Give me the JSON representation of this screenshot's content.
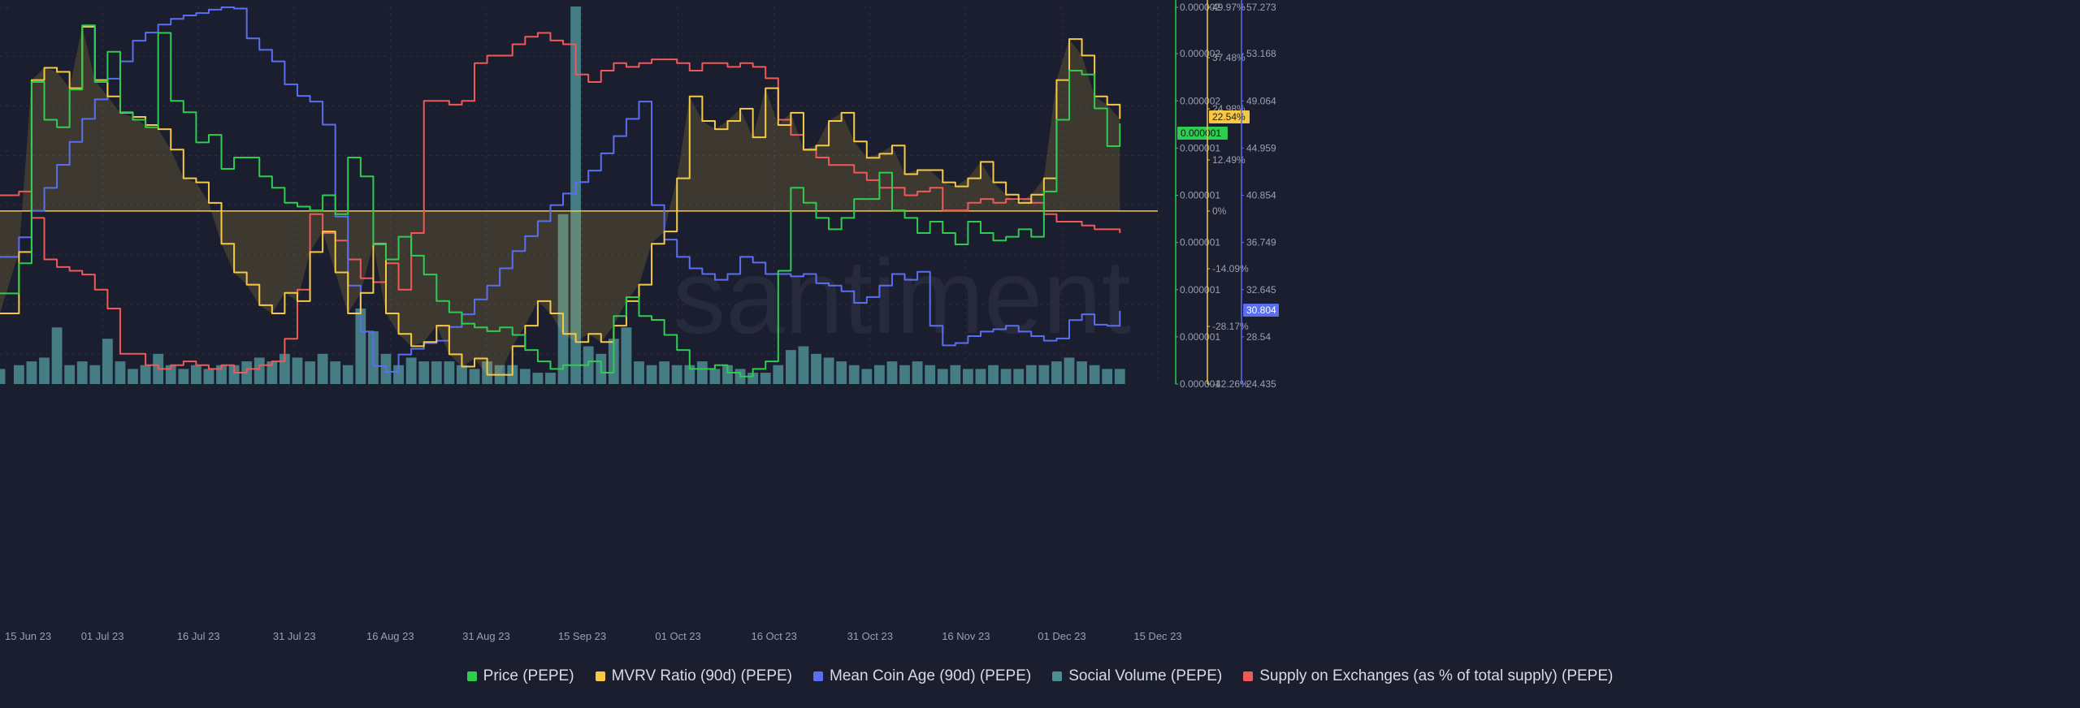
{
  "watermark": "santiment",
  "colors": {
    "background": "#1b1e2e",
    "grid": "#2a2e40",
    "axis_text": "#9aa0b4",
    "price": "#2ecc4f",
    "mvrv": "#f5c945",
    "coin_age": "#5a6ff0",
    "social": "#4e8e93",
    "supply": "#f0585a"
  },
  "legend": [
    {
      "label": "Price (PEPE)",
      "color": "#2ecc4f"
    },
    {
      "label": "MVRV Ratio (90d) (PEPE)",
      "color": "#f5c945"
    },
    {
      "label": "Mean Coin Age (90d) (PEPE)",
      "color": "#5a6ff0"
    },
    {
      "label": "Social Volume (PEPE)",
      "color": "#4e8e93"
    },
    {
      "label": "Supply on Exchanges (as % of total supply) (PEPE)",
      "color": "#f0585a"
    }
  ],
  "chart_data": {
    "type": "line",
    "x_ticks": [
      "15 Jun 23",
      "01 Jul 23",
      "16 Jul 23",
      "31 Jul 23",
      "16 Aug 23",
      "31 Aug 23",
      "15 Sep 23",
      "01 Oct 23",
      "16 Oct 23",
      "31 Oct 23",
      "16 Nov 23",
      "01 Dec 23",
      "15 Dec 23"
    ],
    "xlim": [
      0,
      183
    ],
    "price_axis": {
      "ticks": [
        "0.000002",
        "0.000002",
        "0.000002",
        "0.000001",
        "0.000001",
        "0.000001",
        "0.000001",
        "0.000001",
        "0.000001"
      ],
      "current": "0.000001",
      "color": "#2ecc4f"
    },
    "mvrv_axis": {
      "ticks": [
        "49.97%",
        "37.48%",
        "24.98%",
        "12.49%",
        "0%",
        "-14.09%",
        "-28.17%",
        "-42.26%"
      ],
      "tick_values": [
        49.97,
        37.48,
        24.98,
        12.49,
        0,
        -14.09,
        -28.17,
        -42.26
      ],
      "current": "22.54%",
      "color": "#f5c945",
      "ylim": [
        -42.26,
        49.97
      ]
    },
    "coin_age_axis": {
      "ticks": [
        "57.273",
        "53.168",
        "49.064",
        "44.959",
        "40.854",
        "36.749",
        "32.645",
        "28.54",
        "24.435"
      ],
      "current": "30.804",
      "color": "#5a6ff0",
      "ylim": [
        24.435,
        57.273
      ]
    },
    "series": [
      {
        "name": "Price (PEPE)",
        "axis": "price",
        "x": [
          0,
          3,
          5,
          7,
          9,
          11,
          13,
          15,
          17,
          19,
          21,
          23,
          25,
          27,
          29,
          31,
          33,
          35,
          37,
          39,
          41,
          43,
          45,
          47,
          49,
          51,
          53,
          55,
          57,
          59,
          61,
          63,
          65,
          67,
          69,
          71,
          73,
          75,
          77,
          79,
          81,
          83,
          85,
          87,
          89,
          91,
          93,
          95,
          97,
          99,
          101,
          103,
          105,
          107,
          109,
          111,
          113,
          115,
          117,
          119,
          121,
          123,
          125,
          127,
          129,
          131,
          133,
          135,
          137,
          139,
          141,
          143,
          145,
          147,
          149,
          151,
          153,
          155,
          157,
          159,
          161,
          163,
          165,
          167,
          169,
          171,
          173,
          175,
          177
        ],
        "values": [
          0.24,
          0.32,
          0.8,
          0.7,
          0.68,
          0.78,
          0.95,
          0.8,
          0.88,
          0.72,
          0.7,
          0.68,
          0.93,
          0.75,
          0.72,
          0.64,
          0.66,
          0.57,
          0.6,
          0.6,
          0.55,
          0.52,
          0.48,
          0.47,
          0.46,
          0.5,
          0.45,
          0.6,
          0.55,
          0.37,
          0.33,
          0.39,
          0.34,
          0.29,
          0.22,
          0.19,
          0.16,
          0.15,
          0.14,
          0.15,
          0.13,
          0.09,
          0.06,
          0.04,
          0.05,
          0.05,
          0.06,
          0.03,
          0.18,
          0.23,
          0.18,
          0.17,
          0.13,
          0.09,
          0.04,
          0.04,
          0.05,
          0.03,
          0.02,
          0.04,
          0.06,
          0.3,
          0.52,
          0.48,
          0.44,
          0.41,
          0.44,
          0.49,
          0.49,
          0.56,
          0.46,
          0.44,
          0.4,
          0.43,
          0.4,
          0.37,
          0.43,
          0.4,
          0.38,
          0.39,
          0.41,
          0.39,
          0.51,
          0.7,
          0.83,
          0.82,
          0.73,
          0.63,
          0.69
        ]
      },
      {
        "name": "MVRV Ratio (90d) (PEPE)",
        "axis": "mvrv",
        "x": [
          0,
          3,
          5,
          7,
          9,
          11,
          13,
          15,
          17,
          19,
          21,
          23,
          25,
          27,
          29,
          31,
          33,
          35,
          37,
          39,
          41,
          43,
          45,
          47,
          49,
          51,
          53,
          55,
          57,
          59,
          61,
          63,
          65,
          67,
          69,
          71,
          73,
          75,
          77,
          79,
          81,
          83,
          85,
          87,
          89,
          91,
          93,
          95,
          97,
          99,
          101,
          103,
          105,
          107,
          109,
          111,
          113,
          115,
          117,
          119,
          121,
          123,
          125,
          127,
          129,
          131,
          133,
          135,
          137,
          139,
          141,
          143,
          145,
          147,
          149,
          151,
          153,
          155,
          157,
          159,
          161,
          163,
          165,
          167,
          169,
          171,
          173,
          175,
          177
        ],
        "values": [
          -25,
          -10,
          32,
          35,
          34,
          30,
          45,
          32,
          28,
          24,
          23,
          21,
          20,
          15,
          8,
          7,
          2,
          -8,
          -15,
          -18,
          -23,
          -25,
          -20,
          -22,
          -10,
          -5,
          -15,
          -25,
          -20,
          -8,
          -25,
          -30,
          -33,
          -32,
          -28,
          -35,
          -38,
          -36,
          -40,
          -40,
          -33,
          -28,
          -22,
          -25,
          -30,
          -32,
          -30,
          -32,
          -28,
          -22,
          -18,
          -8,
          -5,
          8,
          28,
          22,
          20,
          22,
          25,
          18,
          30,
          21,
          24,
          15,
          16,
          22,
          24,
          17,
          13,
          14,
          16,
          9,
          10,
          10,
          7,
          6,
          8,
          12,
          7,
          4,
          2,
          4,
          8,
          32,
          42,
          38,
          28,
          26,
          22.54
        ]
      },
      {
        "name": "Mean Coin Age (90d) (PEPE)",
        "axis": "coin_age",
        "x": [
          0,
          3,
          5,
          7,
          9,
          11,
          13,
          15,
          17,
          19,
          21,
          23,
          25,
          27,
          29,
          31,
          33,
          35,
          37,
          39,
          41,
          43,
          45,
          47,
          49,
          51,
          53,
          55,
          57,
          59,
          61,
          63,
          65,
          67,
          69,
          71,
          73,
          75,
          77,
          79,
          81,
          83,
          85,
          87,
          89,
          91,
          93,
          95,
          97,
          99,
          101,
          103,
          105,
          107,
          109,
          111,
          113,
          115,
          117,
          119,
          121,
          123,
          125,
          127,
          129,
          131,
          133,
          135,
          137,
          139,
          141,
          143,
          145,
          147,
          149,
          151,
          153,
          155,
          157,
          159,
          161,
          163,
          165,
          167,
          169,
          171,
          173,
          175,
          177
        ],
        "values": [
          35.5,
          37.2,
          39.5,
          41.5,
          43.5,
          45.5,
          47.5,
          49.2,
          51,
          52.5,
          54.3,
          55,
          55.7,
          56.2,
          56.5,
          56.7,
          57,
          57.2,
          57.1,
          54.5,
          53.5,
          52.5,
          50.5,
          49.5,
          49,
          47,
          39,
          33,
          29,
          26,
          25.5,
          27,
          27.5,
          28,
          28.2,
          29.4,
          30.5,
          31.8,
          33,
          34.5,
          36,
          37.3,
          38.6,
          40,
          41,
          42,
          43,
          44.5,
          46,
          47.5,
          49,
          40,
          37,
          35.5,
          34.5,
          34,
          33.5,
          34,
          35.5,
          35,
          34,
          34,
          33.8,
          34,
          33.2,
          33,
          32.5,
          31.5,
          32,
          33,
          34,
          33.5,
          34.2,
          29.5,
          27.8,
          28,
          28.6,
          29,
          29.2,
          29.5,
          29,
          28.6,
          28.2,
          28.4,
          30,
          30.5,
          29.6,
          29.5,
          30.8
        ]
      },
      {
        "name": "Social Volume (PEPE)",
        "axis": "social",
        "type": "bar",
        "x": [
          0,
          3,
          5,
          7,
          9,
          11,
          13,
          15,
          17,
          19,
          21,
          23,
          25,
          27,
          29,
          31,
          33,
          35,
          37,
          39,
          41,
          43,
          45,
          47,
          49,
          51,
          53,
          55,
          57,
          59,
          61,
          63,
          65,
          67,
          69,
          71,
          73,
          75,
          77,
          79,
          81,
          83,
          85,
          87,
          89,
          91,
          93,
          95,
          97,
          99,
          101,
          103,
          105,
          107,
          109,
          111,
          113,
          115,
          117,
          119,
          121,
          123,
          125,
          127,
          129,
          131,
          133,
          135,
          137,
          139,
          141,
          143,
          145,
          147,
          149,
          151,
          153,
          155,
          157,
          159,
          161,
          163,
          165,
          167,
          169,
          171,
          173,
          175,
          177
        ],
        "values": [
          4,
          5,
          6,
          7,
          15,
          5,
          6,
          5,
          12,
          6,
          4,
          5,
          8,
          5,
          4,
          5,
          4,
          5,
          5,
          6,
          7,
          6,
          8,
          7,
          6,
          8,
          6,
          5,
          20,
          14,
          8,
          5,
          7,
          6,
          6,
          6,
          5,
          4,
          6,
          5,
          5,
          4,
          3,
          3,
          45,
          100,
          10,
          8,
          12,
          15,
          6,
          5,
          6,
          5,
          5,
          6,
          4,
          5,
          4,
          3,
          3,
          5,
          9,
          10,
          8,
          7,
          6,
          5,
          4,
          5,
          6,
          5,
          6,
          5,
          4,
          5,
          4,
          4,
          5,
          4,
          4,
          5,
          5,
          6,
          7,
          6,
          5,
          4,
          4
        ]
      },
      {
        "name": "Supply on Exchanges (as % of total supply) (PEPE)",
        "axis": "supply",
        "x": [
          0,
          3,
          5,
          7,
          9,
          11,
          13,
          15,
          17,
          19,
          21,
          23,
          25,
          27,
          29,
          31,
          33,
          35,
          37,
          39,
          41,
          43,
          45,
          47,
          49,
          51,
          53,
          55,
          57,
          59,
          61,
          63,
          65,
          67,
          69,
          71,
          73,
          75,
          77,
          79,
          81,
          83,
          85,
          87,
          89,
          91,
          93,
          95,
          97,
          99,
          101,
          103,
          105,
          107,
          109,
          111,
          113,
          115,
          117,
          119,
          121,
          123,
          125,
          127,
          129,
          131,
          133,
          135,
          137,
          139,
          141,
          143,
          145,
          147,
          149,
          151,
          153,
          155,
          157,
          159,
          161,
          163,
          165,
          167,
          169,
          171,
          173,
          175,
          177
        ],
        "values": [
          50,
          51,
          44,
          33,
          31,
          30,
          29,
          25,
          20,
          8,
          8,
          5,
          4,
          5,
          6,
          5,
          4,
          5,
          3,
          4,
          5,
          6,
          12,
          25,
          45,
          40,
          38,
          33,
          28,
          27,
          32,
          25,
          40,
          75,
          75,
          74,
          75,
          85,
          87,
          87,
          90,
          92,
          93,
          91,
          90,
          82,
          80,
          83,
          85,
          84,
          85,
          86,
          86,
          85,
          83,
          85,
          85,
          84,
          85,
          84,
          81,
          70,
          66,
          62,
          60,
          58,
          58,
          56,
          54,
          52,
          52,
          50,
          51,
          52,
          46,
          46,
          48,
          49,
          48,
          49,
          49,
          48,
          45,
          43,
          43,
          42,
          41,
          41,
          40
        ]
      }
    ]
  }
}
